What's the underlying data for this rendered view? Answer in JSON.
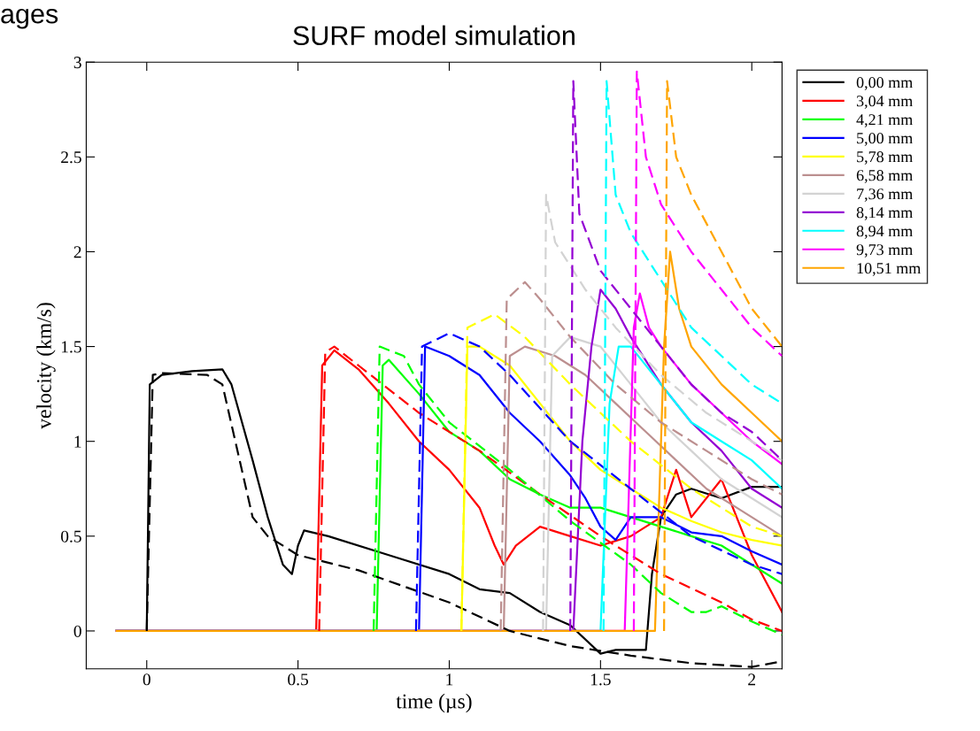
{
  "chart_data": {
    "type": "line",
    "title": "SURF model simulation",
    "xlabel": "time (µs)",
    "ylabel": "velocity (km/s)",
    "annotations": [
      "ages"
    ],
    "xlim": [
      -0.2,
      2.1
    ],
    "xticks": [
      0,
      0.5,
      1,
      1.5,
      2
    ],
    "ylim": [
      -0.2,
      3
    ],
    "yticks": [
      0,
      0.5,
      1,
      1.5,
      2,
      2.5,
      3
    ],
    "grid": false,
    "legend": "top right",
    "marker": "none",
    "series": [
      {
        "name": "0,00 mm",
        "color": "#000000",
        "line_style": "solid",
        "x": [
          -0.1,
          0,
          0.01,
          0.05,
          0.15,
          0.25,
          0.28,
          0.35,
          0.4,
          0.45,
          0.48,
          0.5,
          0.52,
          0.6,
          0.8,
          1.0,
          1.1,
          1.2,
          1.3,
          1.4,
          1.5,
          1.55,
          1.65,
          1.67,
          1.7,
          1.75,
          1.8,
          1.9,
          2.0,
          2.1
        ],
        "values": [
          0,
          0,
          1.3,
          1.35,
          1.37,
          1.38,
          1.3,
          0.9,
          0.6,
          0.35,
          0.3,
          0.45,
          0.53,
          0.5,
          0.4,
          0.3,
          0.22,
          0.2,
          0.1,
          0.03,
          -0.12,
          -0.1,
          -0.1,
          0.3,
          0.6,
          0.72,
          0.75,
          0.7,
          0.76,
          0.76
        ]
      },
      {
        "color": "#000000",
        "line_style": "dashed",
        "x": [
          0,
          0.02,
          0.05,
          0.2,
          0.25,
          0.3,
          0.35,
          0.4,
          0.5,
          0.7,
          1.0,
          1.2,
          1.4,
          1.6,
          1.8,
          2.0,
          2.1
        ],
        "values": [
          0,
          1.35,
          1.36,
          1.35,
          1.3,
          0.95,
          0.6,
          0.5,
          0.4,
          0.32,
          0.15,
          0.0,
          -0.08,
          -0.13,
          -0.17,
          -0.19,
          -0.16
        ]
      },
      {
        "name": "3,04 mm",
        "color": "#ff0000",
        "line_style": "solid",
        "x": [
          -0.1,
          0.56,
          0.58,
          0.62,
          0.7,
          0.8,
          0.9,
          1.0,
          1.1,
          1.15,
          1.18,
          1.22,
          1.3,
          1.4,
          1.5,
          1.6,
          1.7,
          1.75,
          1.8,
          1.9,
          2.0,
          2.1
        ],
        "values": [
          0,
          0,
          1.4,
          1.48,
          1.38,
          1.2,
          1.0,
          0.85,
          0.65,
          0.45,
          0.35,
          0.45,
          0.55,
          0.5,
          0.45,
          0.5,
          0.6,
          0.85,
          0.6,
          0.8,
          0.4,
          0.1
        ]
      },
      {
        "color": "#ff0000",
        "line_style": "dashed",
        "x": [
          0.57,
          0.59,
          0.62,
          0.7,
          0.9,
          1.1,
          1.3,
          1.5,
          1.7,
          1.9,
          2.0,
          2.1
        ],
        "values": [
          0,
          1.47,
          1.5,
          1.4,
          1.15,
          0.95,
          0.72,
          0.5,
          0.3,
          0.15,
          0.06,
          0.0
        ]
      },
      {
        "name": "4,21 mm",
        "color": "#00ff00",
        "line_style": "solid",
        "x": [
          -0.1,
          0.76,
          0.78,
          0.8,
          0.9,
          1.0,
          1.1,
          1.2,
          1.3,
          1.4,
          1.5,
          1.6,
          1.7,
          1.8,
          1.9,
          2.0,
          2.1
        ],
        "values": [
          0,
          0,
          1.4,
          1.43,
          1.25,
          1.05,
          0.95,
          0.8,
          0.72,
          0.65,
          0.65,
          0.6,
          0.55,
          0.5,
          0.45,
          0.35,
          0.25
        ]
      },
      {
        "color": "#00ff00",
        "line_style": "dashed",
        "x": [
          0.75,
          0.77,
          0.85,
          0.9,
          1.0,
          1.2,
          1.4,
          1.6,
          1.7,
          1.8,
          1.85,
          1.9,
          2.0,
          2.1
        ],
        "values": [
          0,
          1.5,
          1.45,
          1.3,
          1.1,
          0.85,
          0.58,
          0.35,
          0.2,
          0.1,
          0.1,
          0.13,
          0.05,
          -0.02
        ]
      },
      {
        "name": "5,00 mm",
        "color": "#0000ff",
        "line_style": "solid",
        "x": [
          -0.1,
          0.9,
          0.92,
          1.0,
          1.1,
          1.2,
          1.3,
          1.4,
          1.45,
          1.5,
          1.55,
          1.6,
          1.7,
          1.8,
          1.9,
          2.0,
          2.1
        ],
        "values": [
          0,
          0,
          1.5,
          1.45,
          1.35,
          1.15,
          1.0,
          0.82,
          0.7,
          0.55,
          0.48,
          0.6,
          0.6,
          0.52,
          0.5,
          0.42,
          0.35
        ]
      },
      {
        "color": "#0000ff",
        "line_style": "dashed",
        "x": [
          0.89,
          0.91,
          1.0,
          1.1,
          1.2,
          1.4,
          1.6,
          1.8,
          2.0,
          2.1
        ],
        "values": [
          0,
          1.5,
          1.57,
          1.5,
          1.35,
          1.0,
          0.75,
          0.5,
          0.35,
          0.3
        ]
      },
      {
        "name": "5,78 mm",
        "color": "#ffff00",
        "line_style": "solid",
        "x": [
          -0.1,
          1.04,
          1.06,
          1.1,
          1.2,
          1.3,
          1.4,
          1.5,
          1.6,
          1.7,
          1.8,
          1.9,
          2.0,
          2.1
        ],
        "values": [
          0,
          0,
          1.5,
          1.5,
          1.4,
          1.2,
          1.0,
          0.85,
          0.75,
          0.65,
          0.58,
          0.52,
          0.48,
          0.45
        ]
      },
      {
        "color": "#ffff00",
        "line_style": "dashed",
        "x": [
          1.04,
          1.06,
          1.15,
          1.25,
          1.4,
          1.6,
          1.8,
          2.0,
          2.1
        ],
        "values": [
          0,
          1.6,
          1.67,
          1.55,
          1.3,
          1.0,
          0.75,
          0.55,
          0.5
        ]
      },
      {
        "name": "6,58 mm",
        "color": "#bc8f8f",
        "line_style": "solid",
        "x": [
          -0.1,
          1.18,
          1.2,
          1.25,
          1.35,
          1.45,
          1.55,
          1.65,
          1.75,
          1.85,
          1.95,
          2.05,
          2.1
        ],
        "values": [
          0,
          0,
          1.45,
          1.5,
          1.45,
          1.35,
          1.2,
          1.05,
          0.9,
          0.75,
          0.65,
          0.55,
          0.5
        ]
      },
      {
        "color": "#bc8f8f",
        "line_style": "dashed",
        "x": [
          1.17,
          1.19,
          1.25,
          1.3,
          1.4,
          1.55,
          1.7,
          1.85,
          2.0,
          2.1
        ],
        "values": [
          0,
          1.75,
          1.84,
          1.75,
          1.55,
          1.3,
          1.1,
          0.95,
          0.8,
          0.72
        ]
      },
      {
        "name": "7,36 mm",
        "color": "#d3d3d3",
        "line_style": "solid",
        "x": [
          -0.1,
          1.32,
          1.34,
          1.4,
          1.5,
          1.6,
          1.7,
          1.8,
          1.9,
          2.0,
          2.1
        ],
        "values": [
          0,
          0,
          1.45,
          1.55,
          1.5,
          1.3,
          1.1,
          0.95,
          0.8,
          0.7,
          0.6
        ]
      },
      {
        "color": "#d3d3d3",
        "line_style": "dashed",
        "x": [
          1.31,
          1.32,
          1.35,
          1.45,
          1.55,
          1.7,
          1.85,
          2.0,
          2.1
        ],
        "values": [
          0,
          2.3,
          2.05,
          1.8,
          1.6,
          1.35,
          1.15,
          1.0,
          0.9
        ]
      },
      {
        "name": "8,14 mm",
        "color": "#9400d3",
        "line_style": "solid",
        "x": [
          -0.1,
          1.41,
          1.44,
          1.47,
          1.5,
          1.55,
          1.6,
          1.7,
          1.8,
          1.9,
          2.0,
          2.1
        ],
        "values": [
          0,
          0,
          1.0,
          1.5,
          1.8,
          1.7,
          1.55,
          1.3,
          1.1,
          0.95,
          0.75,
          0.65
        ]
      },
      {
        "color": "#9400d3",
        "line_style": "dashed",
        "x": [
          1.4,
          1.41,
          1.43,
          1.5,
          1.6,
          1.7,
          1.8,
          1.9,
          2.0,
          2.1
        ],
        "values": [
          0,
          2.9,
          2.2,
          1.9,
          1.7,
          1.5,
          1.3,
          1.15,
          1.05,
          0.9
        ]
      },
      {
        "name": "8,94 mm",
        "color": "#00ffff",
        "line_style": "solid",
        "x": [
          -0.1,
          1.5,
          1.53,
          1.56,
          1.6,
          1.7,
          1.8,
          1.9,
          2.0,
          2.1
        ],
        "values": [
          0,
          0,
          1.2,
          1.5,
          1.5,
          1.3,
          1.1,
          1.0,
          0.9,
          0.75
        ]
      },
      {
        "color": "#00ffff",
        "line_style": "dashed",
        "x": [
          1.51,
          1.52,
          1.55,
          1.6,
          1.7,
          1.8,
          1.9,
          2.0,
          2.1
        ],
        "values": [
          0,
          2.9,
          2.3,
          2.1,
          1.85,
          1.6,
          1.45,
          1.3,
          1.2
        ]
      },
      {
        "name": "9,73 mm",
        "color": "#ff00ff",
        "line_style": "solid",
        "x": [
          -0.1,
          1.58,
          1.61,
          1.63,
          1.66,
          1.7,
          1.8,
          1.9,
          2.0,
          2.1
        ],
        "values": [
          0,
          0,
          1.6,
          1.78,
          1.6,
          1.5,
          1.3,
          1.15,
          1.0,
          0.88
        ]
      },
      {
        "color": "#ff00ff",
        "line_style": "dashed",
        "x": [
          1.61,
          1.62,
          1.65,
          1.7,
          1.8,
          1.9,
          2.0,
          2.1
        ],
        "values": [
          0,
          2.95,
          2.5,
          2.25,
          2.0,
          1.8,
          1.6,
          1.45
        ]
      },
      {
        "name": "10,51 mm",
        "color": "#ffa500",
        "line_style": "solid",
        "x": [
          -0.1,
          1.68,
          1.71,
          1.73,
          1.76,
          1.8,
          1.9,
          2.0,
          2.1
        ],
        "values": [
          0,
          0,
          1.5,
          2.0,
          1.7,
          1.5,
          1.3,
          1.15,
          1.0
        ]
      },
      {
        "color": "#ffa500",
        "line_style": "dashed",
        "x": [
          1.71,
          1.72,
          1.75,
          1.8,
          1.9,
          2.0,
          2.1
        ],
        "values": [
          0,
          2.9,
          2.5,
          2.3,
          2.0,
          1.7,
          1.5
        ]
      }
    ]
  }
}
